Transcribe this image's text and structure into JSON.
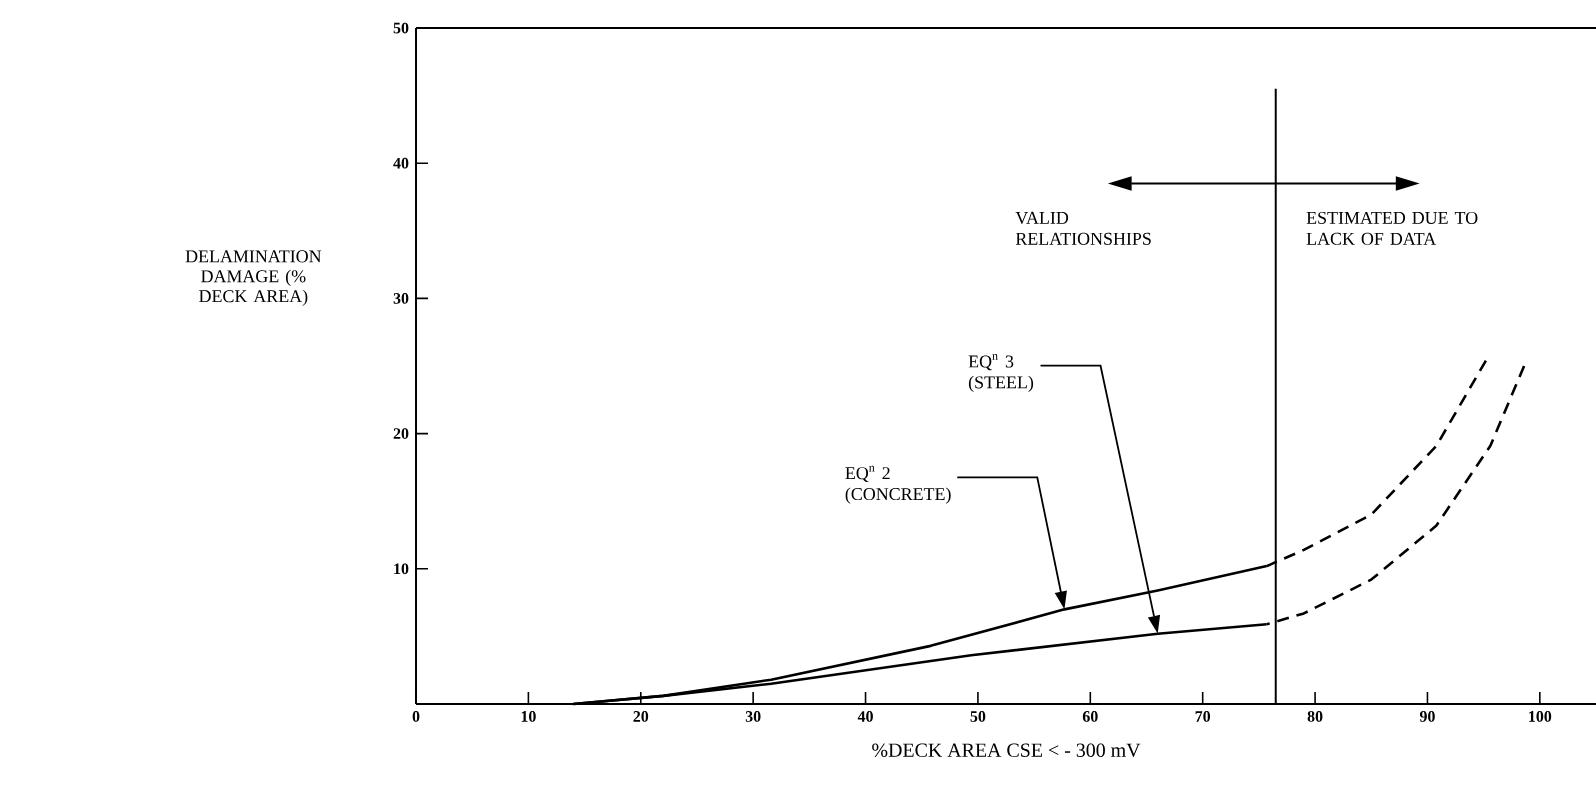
{
  "chart_data": {
    "type": "line",
    "xlabel": "%DECK AREA CSE < - 300 mV",
    "ylabel": "DELAMINATION DAMAGE (% DECK AREA)",
    "xlim": [
      0,
      105
    ],
    "ylim": [
      0,
      50
    ],
    "xticks": [
      0,
      10,
      20,
      30,
      40,
      50,
      60,
      70,
      80,
      90,
      100
    ],
    "yticks": [
      10,
      20,
      30,
      40,
      50
    ],
    "series": [
      {
        "color": "#000000",
        "line_style": "solid",
        "x": [
          14,
          22,
          31.6,
          45.8,
          57.7,
          66,
          75.7
        ],
        "values": [
          0,
          0.6,
          1.8,
          4.3,
          7.0,
          8.4,
          10.2
        ]
      },
      {
        "color": "#000000",
        "line_style": "dashed",
        "x": [
          75.7,
          79,
          85,
          90.8,
          95.2
        ],
        "values": [
          10.2,
          11.4,
          14,
          19.1,
          25.4
        ]
      },
      {
        "color": "#000000",
        "line_style": "solid",
        "x": [
          14,
          22,
          31.6,
          49.4,
          66,
          75.7
        ],
        "values": [
          0,
          0.6,
          1.5,
          3.6,
          5.2,
          5.9
        ]
      },
      {
        "color": "#000000",
        "line_style": "dashed",
        "x": [
          75.7,
          79,
          85,
          90.8,
          95.6,
          98.6
        ],
        "values": [
          5.9,
          6.7,
          9.2,
          13.2,
          19.1,
          25
        ]
      }
    ],
    "ref_lines": [
      {
        "axis": "x",
        "value": 76.5,
        "color": "#000000"
      }
    ],
    "annotations": [
      {
        "text": "EQ$^{n}$ 3 (STEEL)",
        "x": 66,
        "y": 5.2
      },
      {
        "text": "EQ$^{n}$ 2 (CONCRETE)",
        "x": 57.7,
        "y": 7.0
      },
      "VALID RELATIONSHIPS",
      "ESTIMATED DUE TO LACK OF DATA"
    ]
  }
}
